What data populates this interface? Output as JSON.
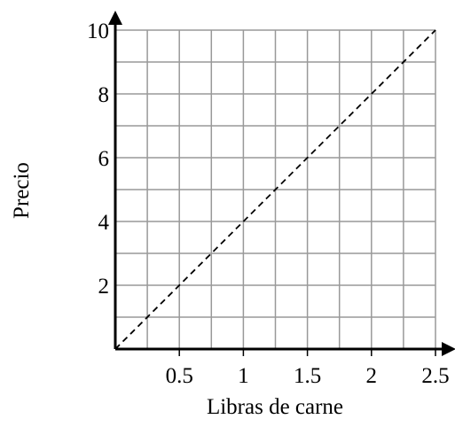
{
  "chart_data": {
    "type": "line",
    "title": "",
    "xlabel": "Libras de carne",
    "ylabel": "Precio",
    "xlim": [
      0,
      2.5
    ],
    "ylim": [
      0,
      10
    ],
    "grid": true,
    "x_grid_step": 0.25,
    "y_grid_step": 1,
    "x_ticks": [
      {
        "value": 0.5,
        "label": "0.5"
      },
      {
        "value": 1,
        "label": "1"
      },
      {
        "value": 1.5,
        "label": "1.5"
      },
      {
        "value": 2,
        "label": "2"
      },
      {
        "value": 2.5,
        "label": "2.5"
      }
    ],
    "y_ticks": [
      {
        "value": 2,
        "label": "2"
      },
      {
        "value": 4,
        "label": "4"
      },
      {
        "value": 6,
        "label": "6"
      },
      {
        "value": 8,
        "label": "8"
      },
      {
        "value": 10,
        "label": "10"
      }
    ],
    "series": [
      {
        "style": "dashed",
        "color": "#000000",
        "x": [
          0,
          2.5
        ],
        "y": [
          0,
          10
        ]
      }
    ],
    "colors": {
      "grid": "#999999",
      "axis": "#000000",
      "line": "#000000"
    }
  }
}
